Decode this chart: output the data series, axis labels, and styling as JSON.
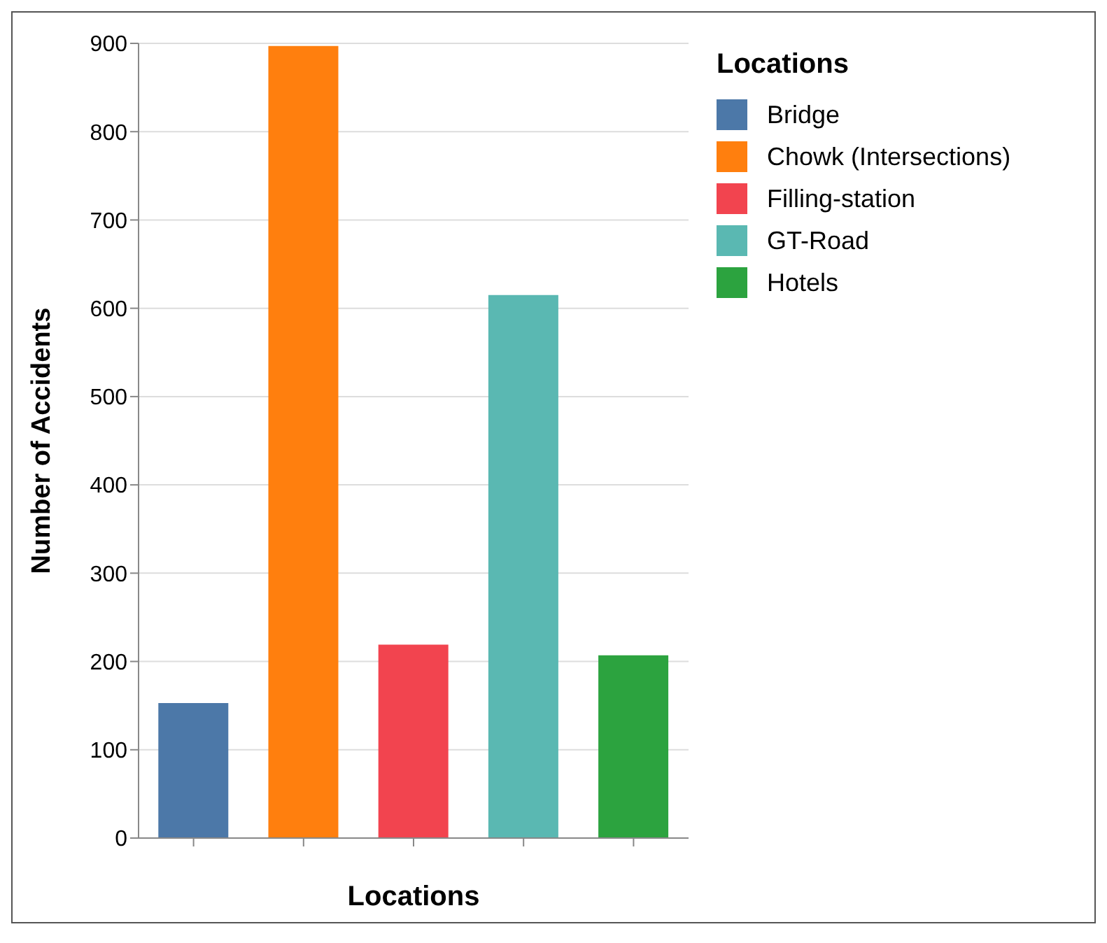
{
  "chart_data": {
    "type": "bar",
    "xlabel": "Locations",
    "ylabel": "Number of Accidents",
    "legend_title": "Locations",
    "categories": [
      null,
      null,
      null,
      null,
      null
    ],
    "series": [
      {
        "name": "Bridge",
        "color": "#4c78a8",
        "values": [
          153,
          null,
          null,
          null,
          null
        ]
      },
      {
        "name": "Chowk (Intersections)",
        "color": "#ff7f0e",
        "values": [
          null,
          897,
          null,
          null,
          null
        ]
      },
      {
        "name": "Filling-station",
        "color": "#f2444f",
        "values": [
          null,
          null,
          219,
          null,
          null
        ]
      },
      {
        "name": "GT-Road",
        "color": "#5ab8b2",
        "values": [
          null,
          null,
          null,
          615,
          null
        ]
      },
      {
        "name": "Hotels",
        "color": "#2ca33f",
        "values": [
          null,
          null,
          null,
          null,
          207
        ]
      }
    ],
    "stacked": true,
    "ylim": [
      0,
      900
    ],
    "yticks": [
      0,
      100,
      200,
      300,
      400,
      500,
      600,
      700,
      800,
      900
    ],
    "grid": "y",
    "legend": "top right",
    "tick_labels": "y"
  }
}
